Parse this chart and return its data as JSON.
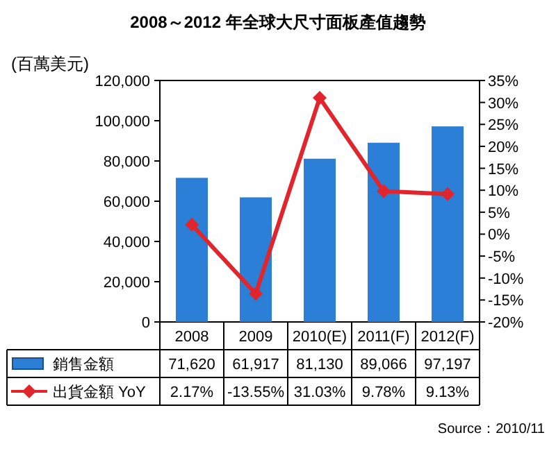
{
  "chart_data": {
    "type": "bar",
    "title": "2008～2012 年全球大尺寸面板產值趨勢",
    "ylabel": "(百萬美元)",
    "categories": [
      "2008",
      "2009",
      "2010(E)",
      "2011(F)",
      "2012(F)"
    ],
    "series": [
      {
        "name": "銷售金額",
        "color": "#2b7fd6",
        "values": [
          71620,
          61917,
          81130,
          89066,
          97197
        ],
        "value_labels": [
          "71,620",
          "61,917",
          "81,130",
          "89,066",
          "97,197"
        ]
      },
      {
        "name": "出貨金額 YoY",
        "type": "line",
        "axis": "y2",
        "color": "#e0262c",
        "values": [
          2.17,
          -13.55,
          31.03,
          9.78,
          9.13
        ],
        "value_labels": [
          "2.17%",
          "-13.55%",
          "31.03%",
          "9.78%",
          "9.13%"
        ]
      }
    ],
    "ylim": [
      0,
      120000
    ],
    "yticks": [
      {
        "value": 0,
        "label": "0"
      },
      {
        "value": 20000,
        "label": "20,000"
      },
      {
        "value": 40000,
        "label": "40,000"
      },
      {
        "value": 60000,
        "label": "60,000"
      },
      {
        "value": 80000,
        "label": "80,000"
      },
      {
        "value": 100000,
        "label": "100,000"
      },
      {
        "value": 120000,
        "label": "120,000"
      }
    ],
    "y2lim": [
      -20,
      35
    ],
    "y2ticks": [
      {
        "value": -20,
        "label": "-20%"
      },
      {
        "value": -15,
        "label": "-15%"
      },
      {
        "value": -10,
        "label": "-10%"
      },
      {
        "value": -5,
        "label": "-5%"
      },
      {
        "value": 0,
        "label": "0%"
      },
      {
        "value": 5,
        "label": "5%"
      },
      {
        "value": 10,
        "label": "10%"
      },
      {
        "value": 15,
        "label": "15%"
      },
      {
        "value": 20,
        "label": "20%"
      },
      {
        "value": 25,
        "label": "25%"
      },
      {
        "value": 30,
        "label": "30%"
      },
      {
        "value": 35,
        "label": "35%"
      }
    ],
    "marker": "diamond",
    "legend": "bottom",
    "annotations": [
      "Source：2010/11"
    ]
  }
}
